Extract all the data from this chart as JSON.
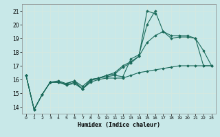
{
  "title": "",
  "xlabel": "Humidex (Indice chaleur)",
  "bg_color": "#c8e8e8",
  "grid_color": "#d4e8e0",
  "line_color": "#1a6a5a",
  "xlim": [
    -0.5,
    23.5
  ],
  "ylim": [
    13.5,
    21.5
  ],
  "yticks": [
    14,
    15,
    16,
    17,
    18,
    19,
    20,
    21
  ],
  "xticks": [
    0,
    1,
    2,
    3,
    4,
    5,
    6,
    7,
    8,
    9,
    10,
    11,
    12,
    13,
    14,
    15,
    16,
    17,
    18,
    19,
    20,
    21,
    22,
    23
  ],
  "series": [
    [
      16.3,
      13.8,
      14.9,
      15.8,
      15.8,
      15.6,
      15.8,
      15.3,
      15.9,
      16.1,
      16.2,
      16.3,
      16.2,
      17.5,
      17.8,
      20.0,
      21.0,
      19.5,
      19.0,
      19.1,
      19.1,
      19.0,
      18.1,
      17.0
    ],
    [
      16.3,
      13.8,
      14.9,
      15.8,
      15.9,
      15.7,
      15.9,
      15.3,
      16.0,
      16.1,
      16.3,
      16.5,
      17.0,
      17.3,
      17.7,
      21.0,
      20.8,
      null,
      null,
      null,
      null,
      null,
      null,
      null
    ],
    [
      16.3,
      13.8,
      14.9,
      15.8,
      15.8,
      15.7,
      15.9,
      15.5,
      16.0,
      16.1,
      16.3,
      16.4,
      16.9,
      17.2,
      17.7,
      18.7,
      19.2,
      19.5,
      19.2,
      19.2,
      19.2,
      19.0,
      17.0,
      17.0
    ],
    [
      16.3,
      13.8,
      14.9,
      15.8,
      15.8,
      15.6,
      15.7,
      15.3,
      15.8,
      16.0,
      16.1,
      16.1,
      16.1,
      16.3,
      16.5,
      16.6,
      16.7,
      16.8,
      16.9,
      17.0,
      17.0,
      17.0,
      17.0,
      17.0
    ]
  ]
}
